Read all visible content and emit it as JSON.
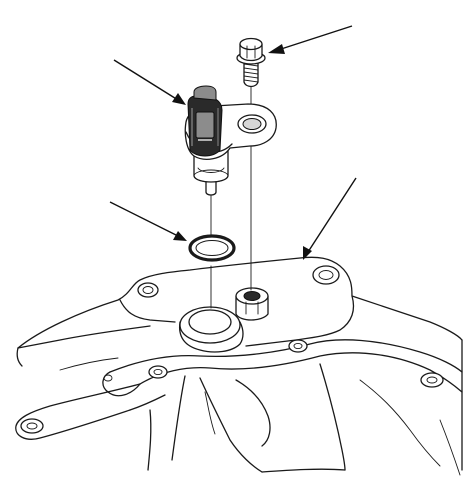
{
  "diagram": {
    "parts": [
      {
        "id": "bolt",
        "name": "flange-bolt"
      },
      {
        "id": "sensor",
        "name": "sensor-with-connector"
      },
      {
        "id": "oring",
        "name": "o-ring"
      },
      {
        "id": "housing",
        "name": "transmission-housing"
      }
    ],
    "callouts": 4,
    "colors": {
      "line": "#1a1a1a",
      "background": "#ffffff"
    }
  }
}
